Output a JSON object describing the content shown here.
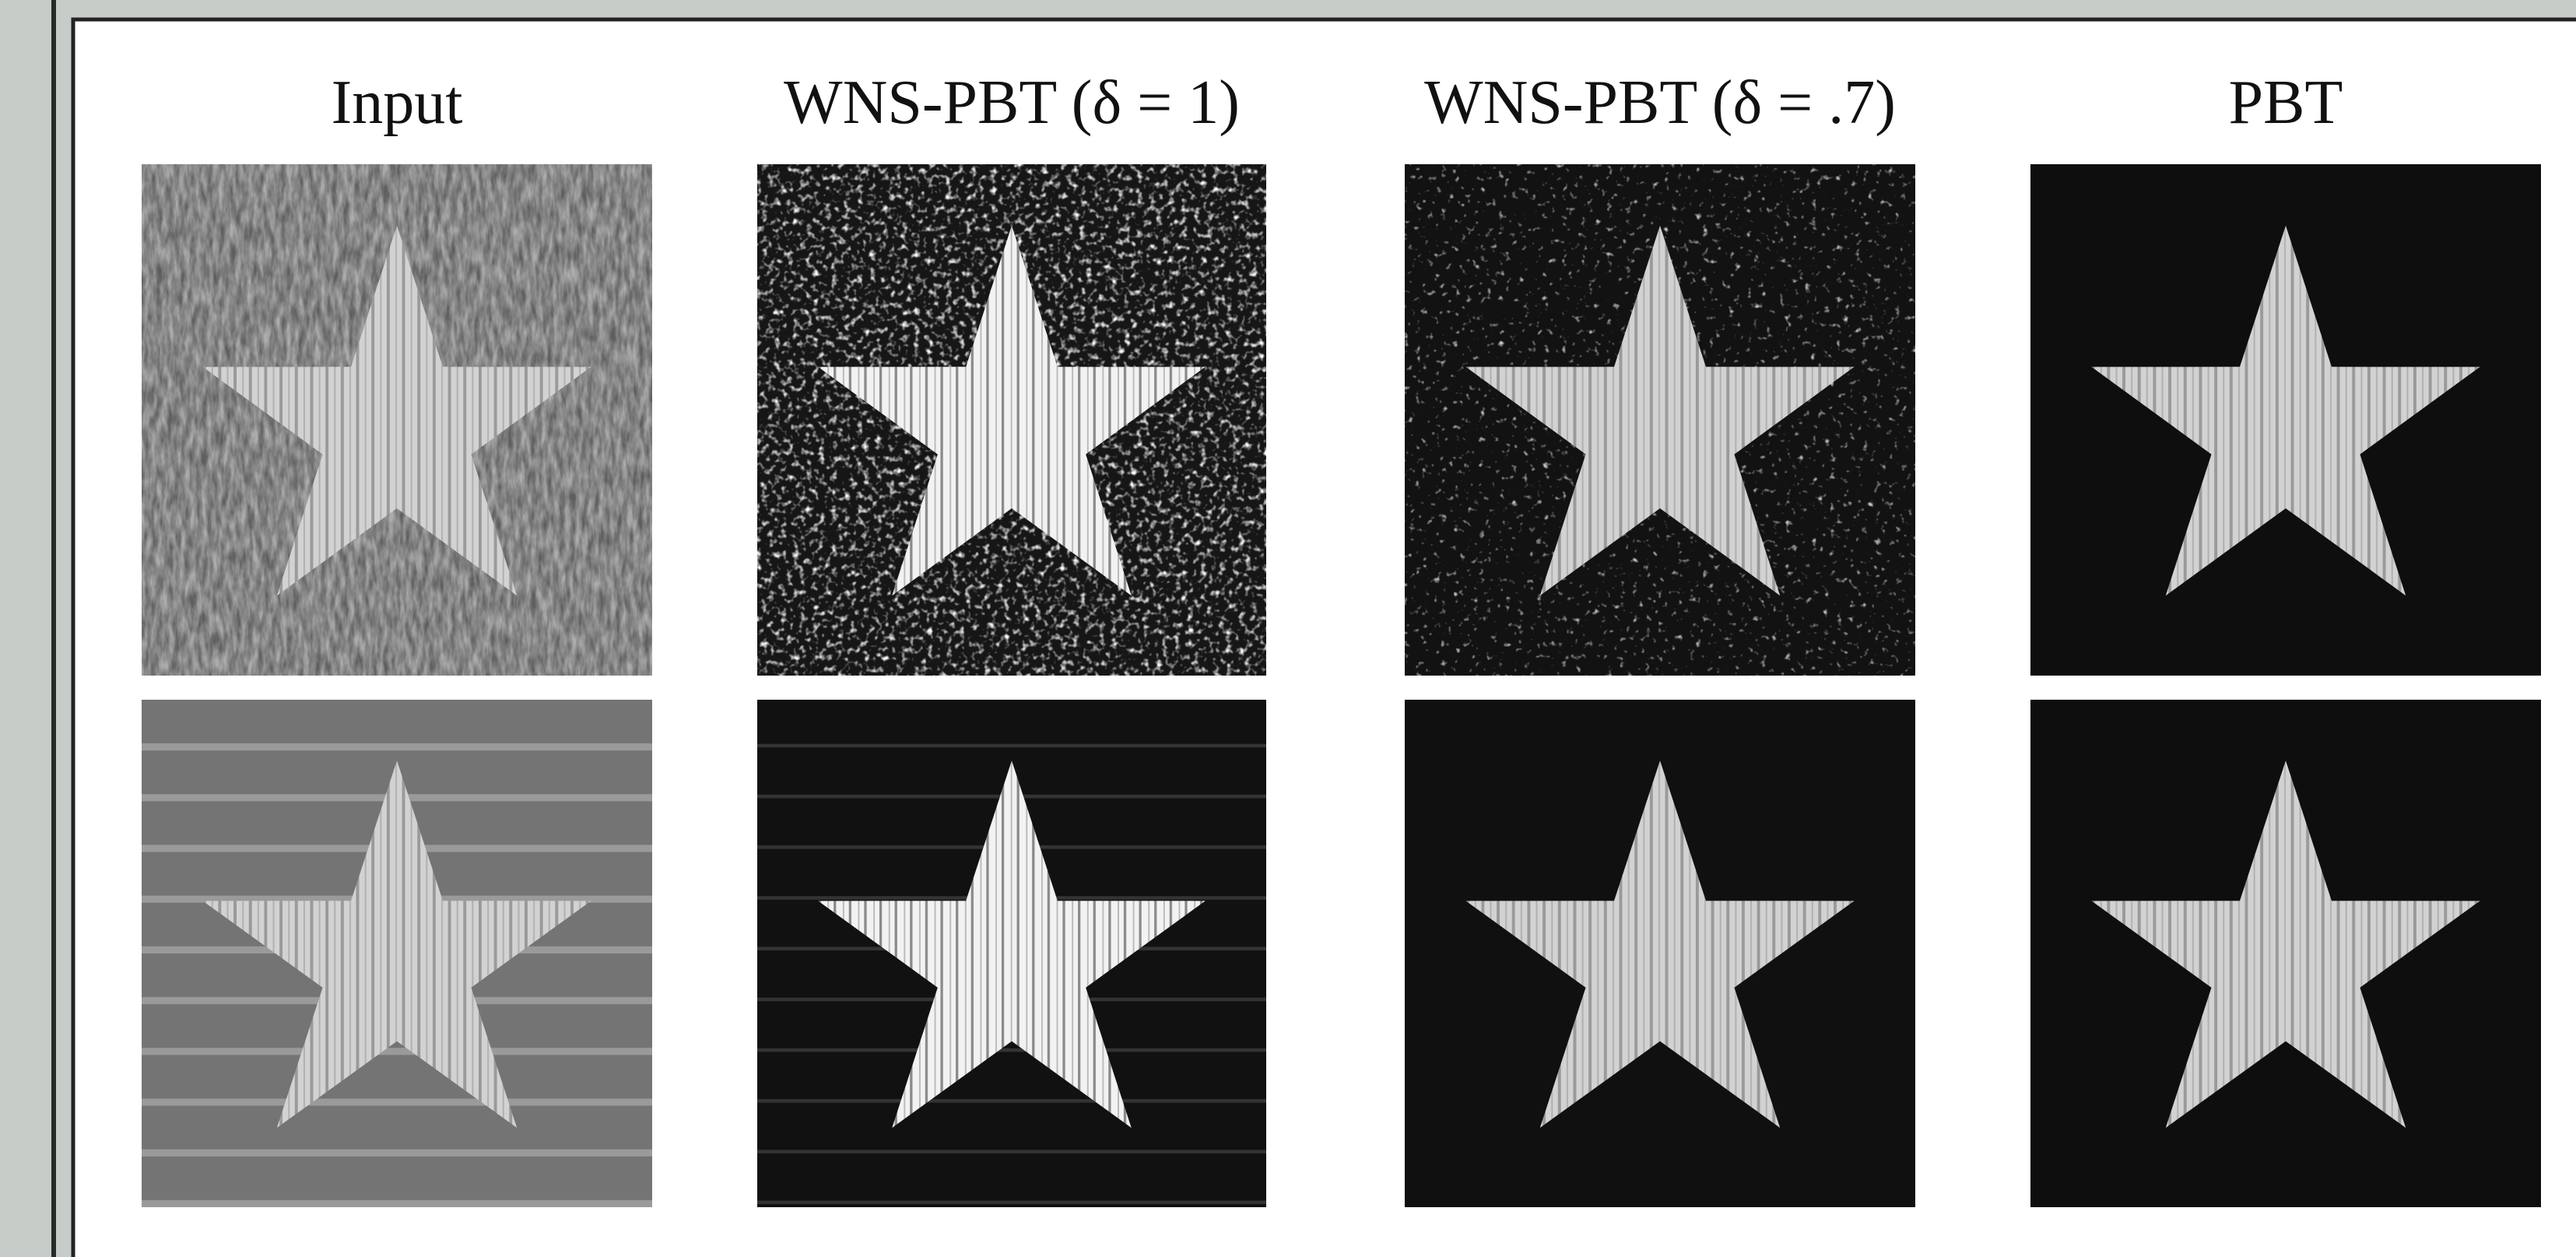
{
  "figure": {
    "columns": [
      "Input",
      "WNS-PBT (δ = 1)",
      "WNS-PBT (δ = .7)",
      "PBT"
    ]
  }
}
